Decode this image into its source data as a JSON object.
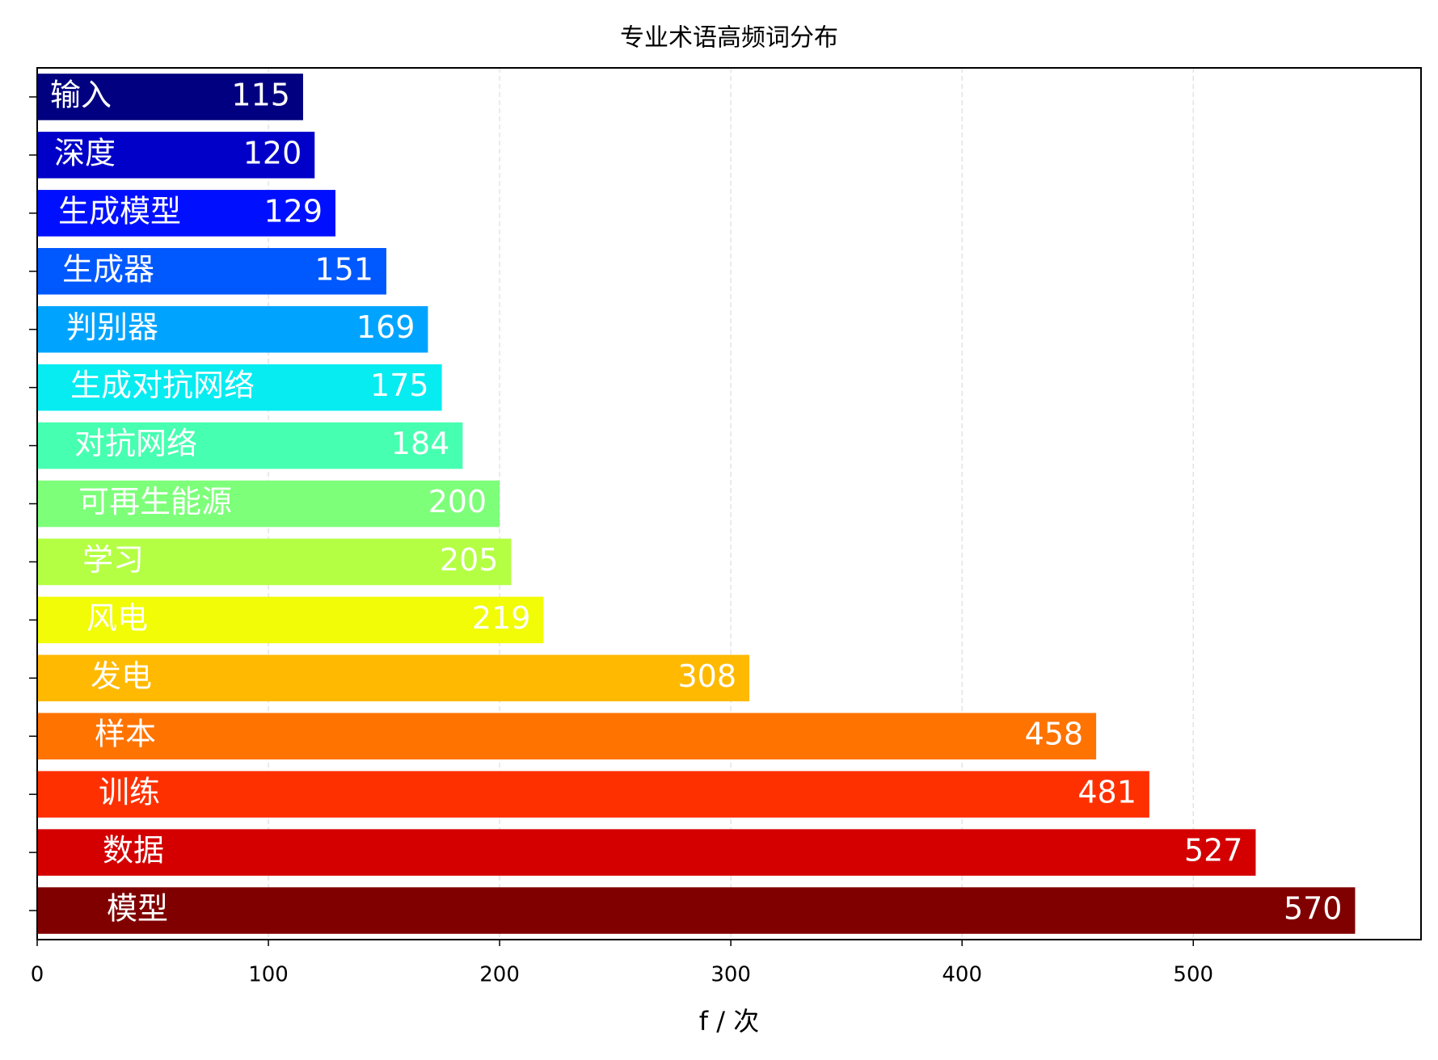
{
  "chart_data": {
    "type": "barh",
    "title": "专业术语高频词分布",
    "xlabel": "f / 次",
    "categories": [
      "输入",
      "深度",
      "生成模型",
      "生成器",
      "判别器",
      "生成对抗网络",
      "对抗网络",
      "可再生能源",
      "学习",
      "风电",
      "发电",
      "样本",
      "训练",
      "数据",
      "模型"
    ],
    "values": [
      115,
      120,
      129,
      151,
      169,
      175,
      184,
      200,
      205,
      219,
      308,
      458,
      481,
      527,
      570
    ],
    "colors": [
      "#000080",
      "#0000c8",
      "#0010ff",
      "#0058ff",
      "#00a4ff",
      "#06ecf1",
      "#46ffb0",
      "#7dff7a",
      "#b4ff43",
      "#f1fc06",
      "#ffb900",
      "#ff7300",
      "#ff3000",
      "#d40000",
      "#800000"
    ],
    "xlim": [
      0,
      598.5
    ],
    "xticks": [
      0,
      100,
      200,
      300,
      400,
      500
    ],
    "grid": true
  }
}
